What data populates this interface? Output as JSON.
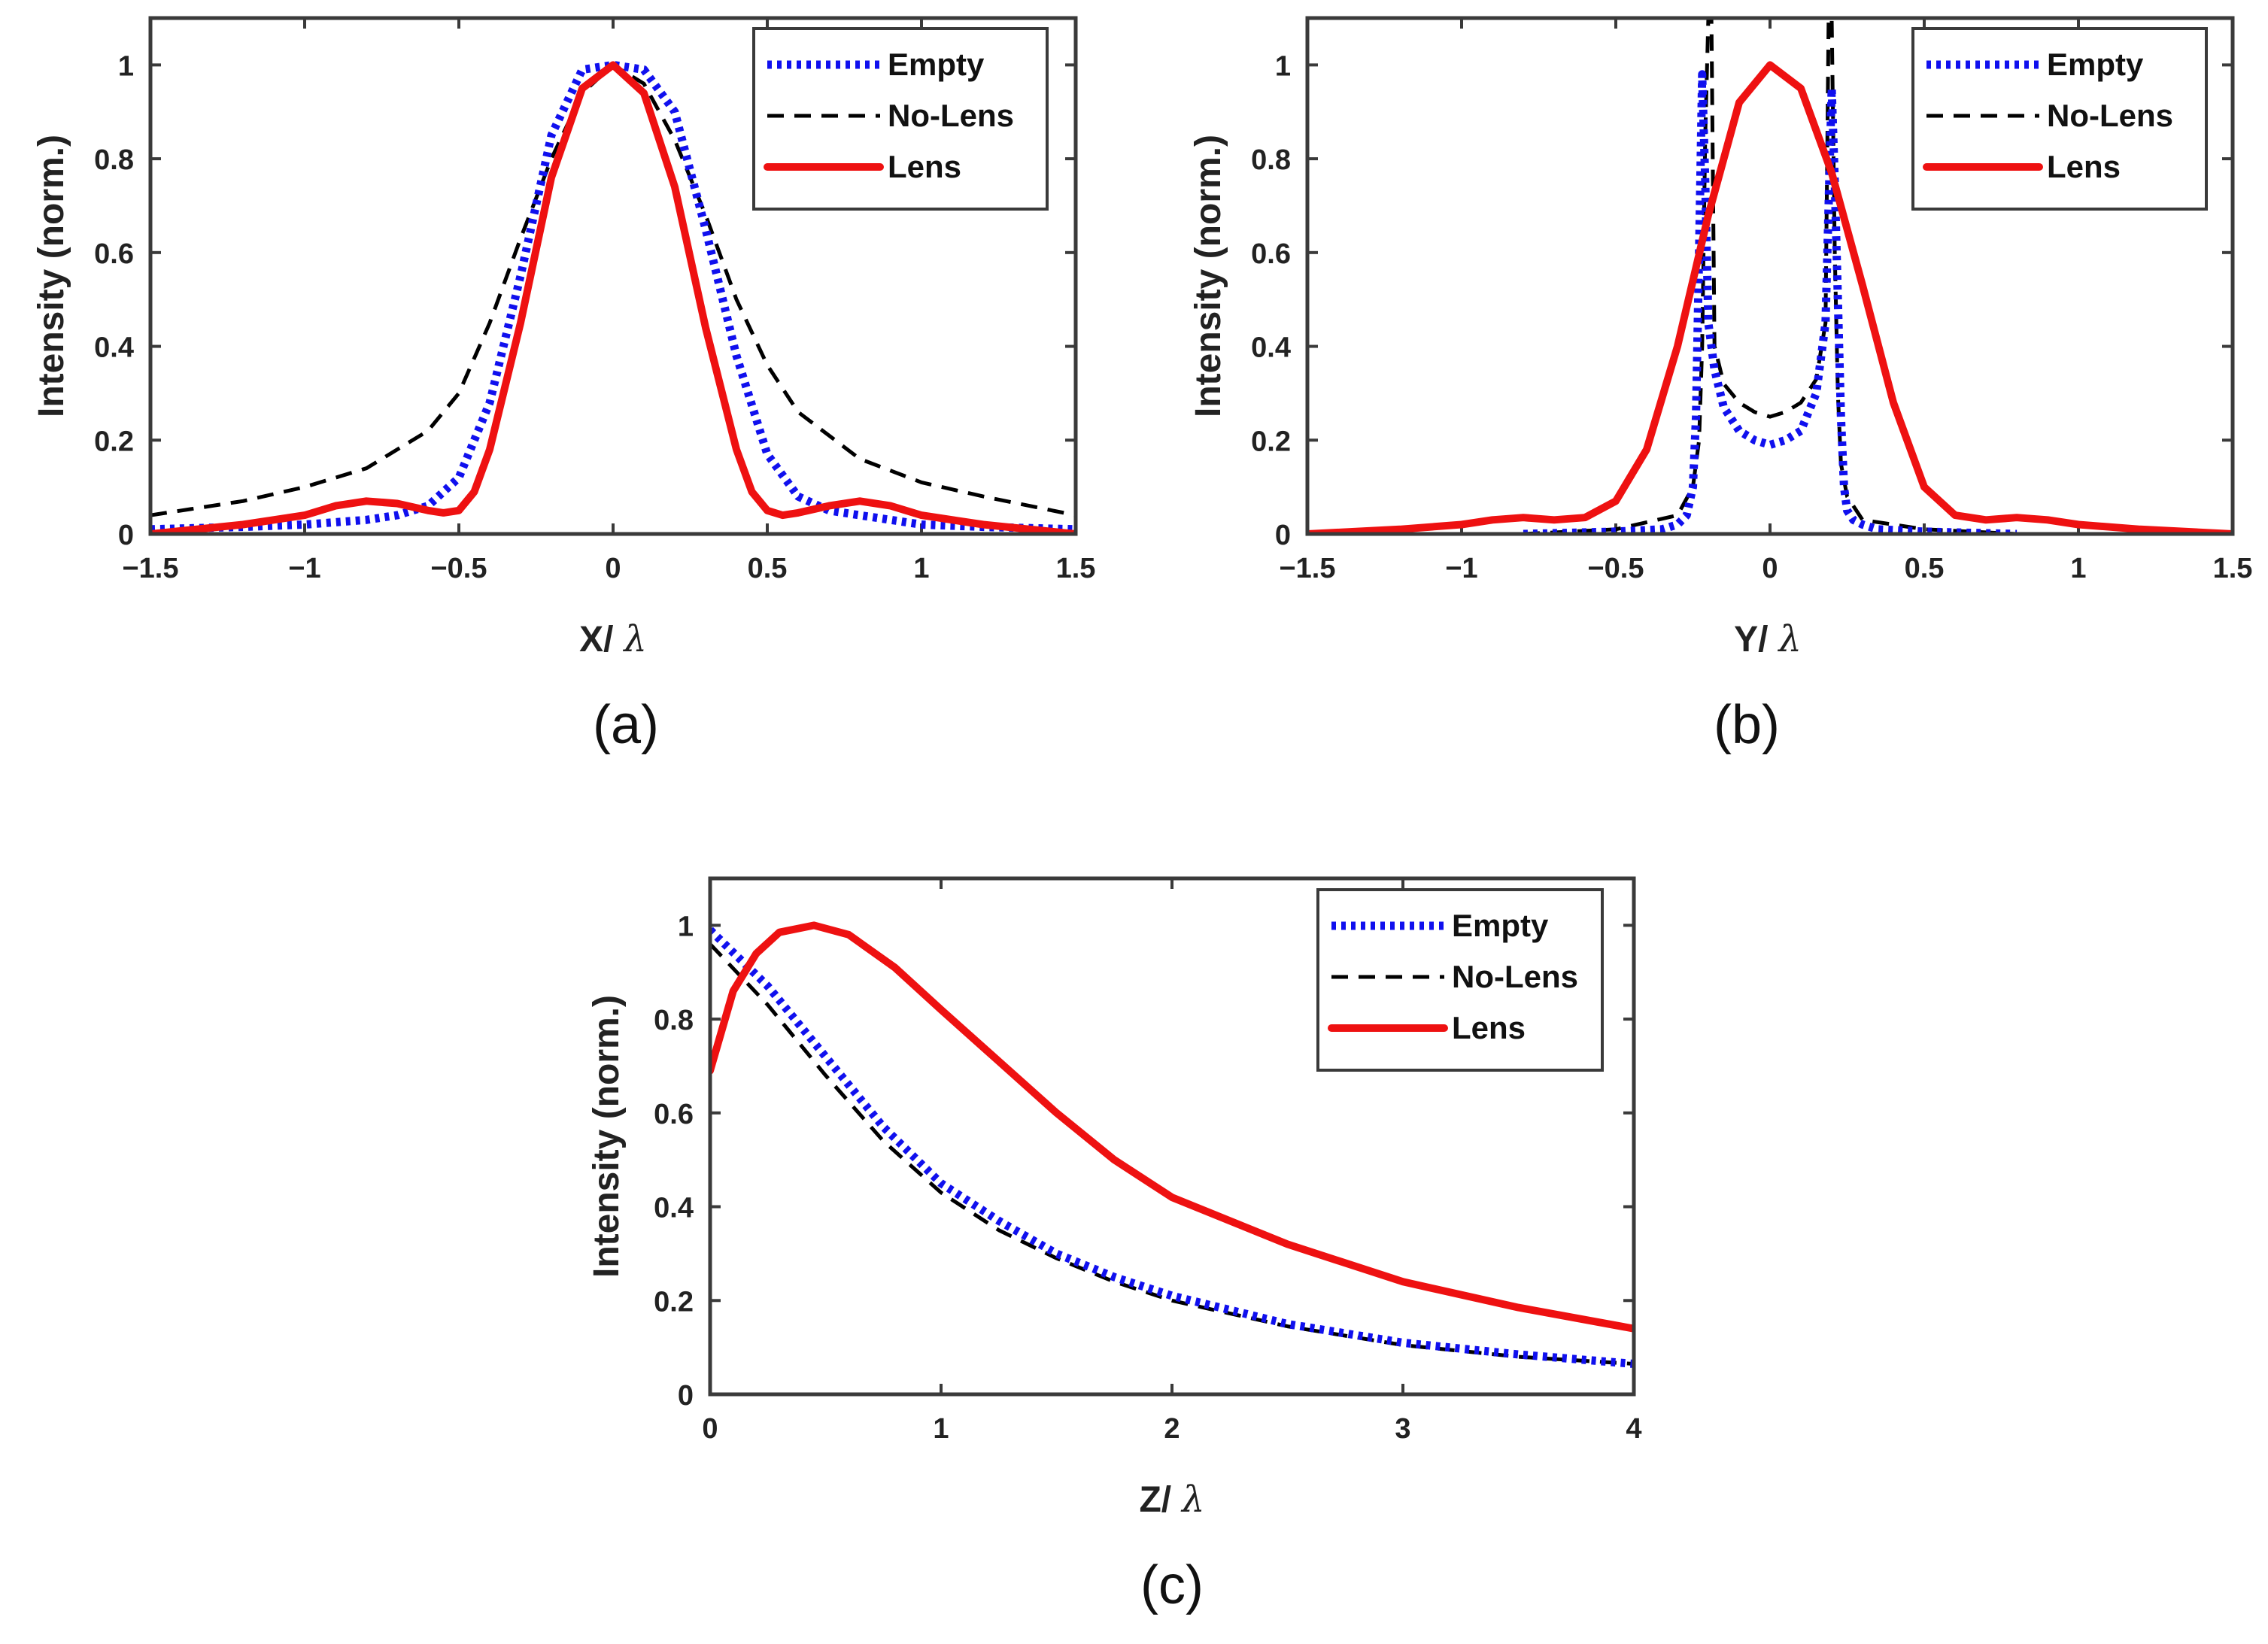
{
  "colors": {
    "empty": "#1010ee",
    "no_lens": "#000000",
    "lens": "#ee1111",
    "axis": "#3a3a3a"
  },
  "legend_labels": [
    "Empty",
    "No-Lens",
    "Lens"
  ],
  "chart_data": [
    {
      "id": "a",
      "caption": "(a)",
      "type": "line",
      "xlabel": "X/",
      "xlabel_symbol": "λ",
      "ylabel": "Intensity (norm.)",
      "xlim": [
        -1.5,
        1.5
      ],
      "ylim": [
        0,
        1.1
      ],
      "xticks": [
        -1.5,
        -1,
        -0.5,
        0,
        0.5,
        1,
        1.5
      ],
      "xtick_labels": [
        "−1.5",
        "−1",
        "−0.5",
        "0",
        "0.5",
        "1",
        "1.5"
      ],
      "yticks": [
        0,
        0.2,
        0.4,
        0.6,
        0.8,
        1
      ],
      "ytick_labels": [
        "0",
        "0.2",
        "0.4",
        "0.6",
        "0.8",
        "1"
      ],
      "legend_position": "top-right",
      "series": [
        {
          "name": "Empty",
          "style": "dotted",
          "x": [
            -1.5,
            -1.2,
            -1.0,
            -0.8,
            -0.7,
            -0.6,
            -0.5,
            -0.4,
            -0.3,
            -0.2,
            -0.1,
            0,
            0.1,
            0.2,
            0.3,
            0.4,
            0.5,
            0.6,
            0.7,
            0.8,
            1.0,
            1.2,
            1.5
          ],
          "y": [
            0.01,
            0.015,
            0.02,
            0.03,
            0.04,
            0.06,
            0.12,
            0.28,
            0.55,
            0.85,
            0.99,
            1.0,
            0.99,
            0.9,
            0.65,
            0.38,
            0.17,
            0.08,
            0.05,
            0.04,
            0.02,
            0.015,
            0.01
          ]
        },
        {
          "name": "No-Lens",
          "style": "dashed",
          "x": [
            -1.5,
            -1.2,
            -1.0,
            -0.8,
            -0.6,
            -0.5,
            -0.4,
            -0.3,
            -0.2,
            -0.1,
            0,
            0.1,
            0.2,
            0.3,
            0.4,
            0.5,
            0.6,
            0.8,
            1.0,
            1.2,
            1.5
          ],
          "y": [
            0.04,
            0.07,
            0.1,
            0.14,
            0.22,
            0.3,
            0.45,
            0.63,
            0.8,
            0.94,
            1.0,
            0.96,
            0.84,
            0.68,
            0.5,
            0.36,
            0.26,
            0.16,
            0.11,
            0.08,
            0.04
          ]
        },
        {
          "name": "Lens",
          "style": "solid",
          "x": [
            -1.5,
            -1.2,
            -1.0,
            -0.9,
            -0.8,
            -0.7,
            -0.6,
            -0.55,
            -0.5,
            -0.45,
            -0.4,
            -0.3,
            -0.2,
            -0.1,
            0,
            0.1,
            0.2,
            0.3,
            0.4,
            0.45,
            0.5,
            0.55,
            0.6,
            0.7,
            0.8,
            0.9,
            1.0,
            1.2,
            1.5
          ],
          "y": [
            0.0,
            0.02,
            0.04,
            0.06,
            0.07,
            0.065,
            0.05,
            0.045,
            0.05,
            0.09,
            0.18,
            0.45,
            0.76,
            0.95,
            1.0,
            0.94,
            0.74,
            0.44,
            0.18,
            0.09,
            0.05,
            0.04,
            0.045,
            0.06,
            0.07,
            0.06,
            0.04,
            0.02,
            0.0
          ]
        }
      ]
    },
    {
      "id": "b",
      "caption": "(b)",
      "type": "line",
      "xlabel": "Y/",
      "xlabel_symbol": "λ",
      "ylabel": "Intensity (norm.)",
      "xlim": [
        -1.5,
        1.5
      ],
      "ylim": [
        0,
        1.1
      ],
      "xticks": [
        -1.5,
        -1,
        -0.5,
        0,
        0.5,
        1,
        1.5
      ],
      "xtick_labels": [
        "−1.5",
        "−1",
        "−0.5",
        "0",
        "0.5",
        "1",
        "1.5"
      ],
      "yticks": [
        0,
        0.2,
        0.4,
        0.6,
        0.8,
        1
      ],
      "ytick_labels": [
        "0",
        "0.2",
        "0.4",
        "0.6",
        "0.8",
        "1"
      ],
      "legend_position": "top-right",
      "series": [
        {
          "name": "Empty",
          "style": "dotted",
          "x": [
            -0.8,
            -0.5,
            -0.35,
            -0.3,
            -0.27,
            -0.25,
            -0.24,
            -0.23,
            -0.22,
            -0.21,
            -0.2,
            -0.18,
            -0.15,
            -0.1,
            -0.05,
            0,
            0.05,
            0.1,
            0.15,
            0.18,
            0.2,
            0.21,
            0.22,
            0.23,
            0.24,
            0.25,
            0.27,
            0.3,
            0.35,
            0.5,
            0.8
          ],
          "y": [
            0.0,
            0.005,
            0.01,
            0.02,
            0.04,
            0.1,
            0.25,
            0.6,
            0.98,
            0.75,
            0.45,
            0.35,
            0.27,
            0.22,
            0.2,
            0.19,
            0.2,
            0.22,
            0.3,
            0.45,
            0.95,
            0.75,
            0.5,
            0.25,
            0.1,
            0.05,
            0.03,
            0.02,
            0.01,
            0.005,
            0.0
          ]
        },
        {
          "name": "No-Lens",
          "style": "dashed",
          "x": [
            -0.8,
            -0.5,
            -0.3,
            -0.25,
            -0.23,
            -0.22,
            -0.21,
            -0.2,
            -0.19,
            -0.18,
            -0.15,
            -0.1,
            -0.05,
            0,
            0.05,
            0.1,
            0.15,
            0.18,
            0.19,
            0.2,
            0.21,
            0.22,
            0.23,
            0.25,
            0.3,
            0.5,
            0.8
          ],
          "y": [
            0.0,
            0.01,
            0.04,
            0.1,
            0.2,
            0.4,
            0.85,
            1.1,
            1.1,
            0.4,
            0.32,
            0.28,
            0.26,
            0.25,
            0.26,
            0.28,
            0.33,
            0.45,
            1.1,
            1.1,
            0.6,
            0.3,
            0.15,
            0.08,
            0.03,
            0.01,
            0.0
          ]
        },
        {
          "name": "Lens",
          "style": "solid",
          "x": [
            -1.5,
            -1.2,
            -1.0,
            -0.9,
            -0.8,
            -0.7,
            -0.6,
            -0.5,
            -0.4,
            -0.3,
            -0.2,
            -0.1,
            0,
            0.1,
            0.2,
            0.3,
            0.4,
            0.5,
            0.6,
            0.7,
            0.8,
            0.9,
            1.0,
            1.2,
            1.5
          ],
          "y": [
            0.0,
            0.01,
            0.02,
            0.03,
            0.035,
            0.03,
            0.035,
            0.07,
            0.18,
            0.4,
            0.68,
            0.92,
            1.0,
            0.95,
            0.77,
            0.53,
            0.28,
            0.1,
            0.04,
            0.03,
            0.035,
            0.03,
            0.02,
            0.01,
            0.0
          ]
        }
      ]
    },
    {
      "id": "c",
      "caption": "(c)",
      "type": "line",
      "xlabel": "Z/",
      "xlabel_symbol": "λ",
      "ylabel": "Intensity (norm.)",
      "xlim": [
        0,
        4
      ],
      "ylim": [
        0,
        1.1
      ],
      "xticks": [
        0,
        1,
        2,
        3,
        4
      ],
      "xtick_labels": [
        "0",
        "1",
        "2",
        "3",
        "4"
      ],
      "yticks": [
        0,
        0.2,
        0.4,
        0.6,
        0.8,
        1
      ],
      "ytick_labels": [
        "0",
        "0.2",
        "0.4",
        "0.6",
        "0.8",
        "1"
      ],
      "legend_position": "top-right",
      "series": [
        {
          "name": "Empty",
          "style": "dotted",
          "x": [
            0,
            0.25,
            0.5,
            0.75,
            1.0,
            1.25,
            1.5,
            1.75,
            2.0,
            2.5,
            3.0,
            3.5,
            4.0
          ],
          "y": [
            0.99,
            0.87,
            0.72,
            0.57,
            0.45,
            0.37,
            0.3,
            0.25,
            0.21,
            0.15,
            0.11,
            0.085,
            0.065
          ]
        },
        {
          "name": "No-Lens",
          "style": "dashed",
          "x": [
            0,
            0.25,
            0.5,
            0.75,
            1.0,
            1.25,
            1.5,
            1.75,
            2.0,
            2.5,
            3.0,
            3.5,
            4.0
          ],
          "y": [
            0.96,
            0.83,
            0.68,
            0.54,
            0.43,
            0.35,
            0.29,
            0.24,
            0.2,
            0.145,
            0.105,
            0.08,
            0.065
          ]
        },
        {
          "name": "Lens",
          "style": "solid",
          "x": [
            0,
            0.1,
            0.2,
            0.3,
            0.45,
            0.6,
            0.8,
            1.0,
            1.25,
            1.5,
            1.75,
            2.0,
            2.5,
            3.0,
            3.5,
            4.0
          ],
          "y": [
            0.69,
            0.86,
            0.94,
            0.985,
            1.0,
            0.98,
            0.91,
            0.82,
            0.71,
            0.6,
            0.5,
            0.42,
            0.32,
            0.24,
            0.185,
            0.14
          ]
        }
      ]
    }
  ]
}
